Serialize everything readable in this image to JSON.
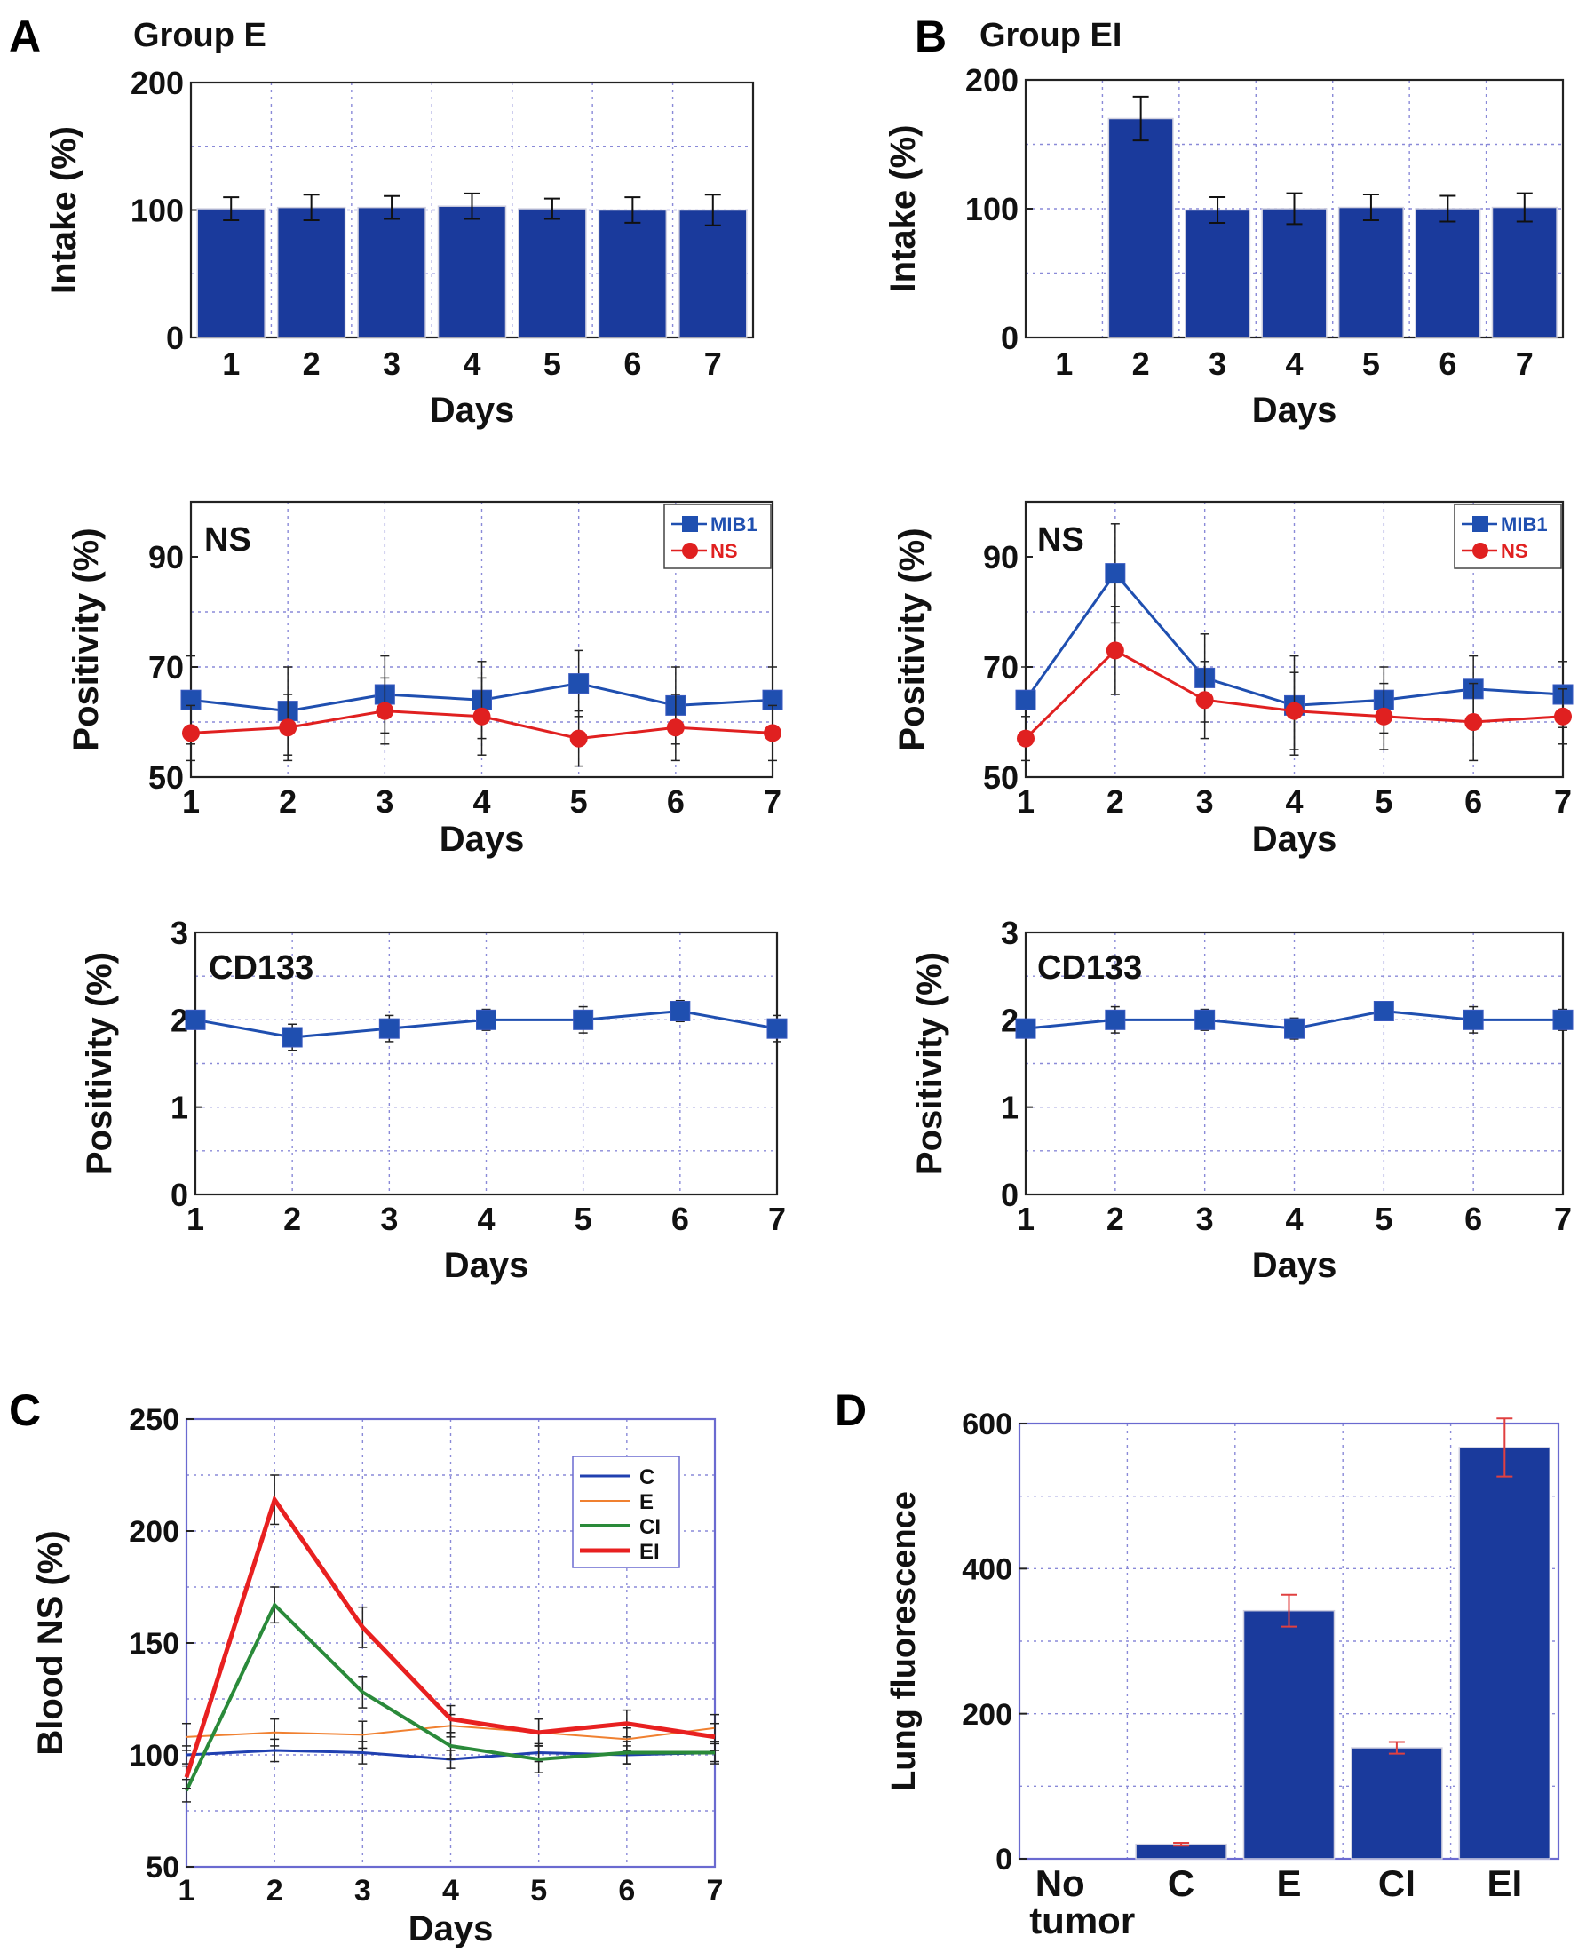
{
  "figure": {
    "panel_labels": [
      "A",
      "B",
      "C",
      "D"
    ]
  },
  "chart_data": [
    {
      "id": "A-intake",
      "panel": "A",
      "type": "bar",
      "title": "Group E",
      "xlabel": "Days",
      "ylabel": "Intake (%)",
      "categories": [
        "1",
        "2",
        "3",
        "4",
        "5",
        "6",
        "7"
      ],
      "values": [
        101,
        102,
        102,
        103,
        101,
        100,
        100
      ],
      "errors": [
        9,
        10,
        9,
        10,
        8,
        10,
        12
      ],
      "ylim": [
        0,
        200
      ],
      "yticks": [
        0,
        100,
        200
      ],
      "grid": true,
      "bar_color": "#1a3a9c"
    },
    {
      "id": "B-intake",
      "panel": "B",
      "type": "bar",
      "title": "Group EI",
      "xlabel": "Days",
      "ylabel": "Intake (%)",
      "categories": [
        "1",
        "2",
        "3",
        "4",
        "5",
        "6",
        "7"
      ],
      "values": [
        0,
        170,
        99,
        100,
        101,
        100,
        101
      ],
      "errors": [
        0,
        17,
        10,
        12,
        10,
        10,
        11
      ],
      "ylim": [
        0,
        200
      ],
      "yticks": [
        0,
        100,
        200
      ],
      "grid": true,
      "bar_color": "#1a3a9c"
    },
    {
      "id": "A-ns",
      "panel": "A",
      "type": "line",
      "annotation": "NS",
      "xlabel": "Days",
      "ylabel": "Positivity (%)",
      "x": [
        1,
        2,
        3,
        4,
        5,
        6,
        7
      ],
      "ylim": [
        50,
        100
      ],
      "yticks": [
        50,
        70,
        90
      ],
      "grid": true,
      "legend": "top-right",
      "series": [
        {
          "name": "MIB1",
          "marker": "square",
          "color": "#1f4fb0",
          "values": [
            64,
            62,
            65,
            64,
            67,
            63,
            64
          ],
          "errors": [
            8,
            8,
            7,
            7,
            6,
            7,
            6
          ]
        },
        {
          "name": "NS",
          "marker": "circle",
          "color": "#e02020",
          "values": [
            58,
            59,
            62,
            61,
            57,
            59,
            58
          ],
          "errors": [
            5,
            6,
            6,
            7,
            5,
            6,
            5
          ]
        }
      ]
    },
    {
      "id": "B-ns",
      "panel": "B",
      "type": "line",
      "annotation": "NS",
      "xlabel": "Days",
      "ylabel": "Positivity (%)",
      "x": [
        1,
        2,
        3,
        4,
        5,
        6,
        7
      ],
      "ylim": [
        50,
        100
      ],
      "yticks": [
        50,
        70,
        90
      ],
      "grid": true,
      "legend": "top-right",
      "series": [
        {
          "name": "MIB1",
          "marker": "square",
          "color": "#1f4fb0",
          "values": [
            64,
            87,
            68,
            63,
            64,
            66,
            65
          ],
          "errors": [
            6,
            9,
            8,
            9,
            6,
            6,
            6
          ]
        },
        {
          "name": "NS",
          "marker": "circle",
          "color": "#e02020",
          "values": [
            57,
            73,
            64,
            62,
            61,
            60,
            61
          ],
          "errors": [
            4,
            8,
            7,
            7,
            6,
            7,
            5
          ]
        }
      ]
    },
    {
      "id": "A-cd133",
      "panel": "A",
      "type": "line",
      "annotation": "CD133",
      "xlabel": "Days",
      "ylabel": "Positivity (%)",
      "x": [
        1,
        2,
        3,
        4,
        5,
        6,
        7
      ],
      "ylim": [
        0,
        3
      ],
      "yticks": [
        0,
        1,
        2,
        3
      ],
      "grid": true,
      "series": [
        {
          "name": "CD133",
          "marker": "square",
          "color": "#1f4fb0",
          "values": [
            2.0,
            1.8,
            1.9,
            2.0,
            2.0,
            2.1,
            1.9
          ],
          "errors": [
            0.1,
            0.15,
            0.15,
            0.12,
            0.15,
            0.12,
            0.15
          ]
        }
      ]
    },
    {
      "id": "B-cd133",
      "panel": "B",
      "type": "line",
      "annotation": "CD133",
      "xlabel": "Days",
      "ylabel": "Positivity (%)",
      "x": [
        1,
        2,
        3,
        4,
        5,
        6,
        7
      ],
      "ylim": [
        0,
        3
      ],
      "yticks": [
        0,
        1,
        2,
        3
      ],
      "grid": true,
      "series": [
        {
          "name": "CD133",
          "marker": "square",
          "color": "#1f4fb0",
          "values": [
            1.9,
            2.0,
            2.0,
            1.9,
            2.1,
            2.0,
            2.0
          ],
          "errors": [
            0.1,
            0.15,
            0.12,
            0.12,
            0.1,
            0.15,
            0.12
          ]
        }
      ]
    },
    {
      "id": "C-blood",
      "panel": "C",
      "type": "line",
      "xlabel": "Days",
      "ylabel": "Blood NS (%)",
      "x": [
        1,
        2,
        3,
        4,
        5,
        6,
        7
      ],
      "ylim": [
        50,
        250
      ],
      "yticks": [
        50,
        100,
        150,
        200,
        250
      ],
      "grid": true,
      "legend": "top-right",
      "series": [
        {
          "name": "C",
          "color": "#2040b0",
          "width": 3,
          "values": [
            100,
            102,
            101,
            98,
            101,
            100,
            101
          ],
          "errors": [
            4,
            5,
            5,
            4,
            4,
            4,
            4
          ]
        },
        {
          "name": "E",
          "color": "#f08030",
          "width": 2,
          "values": [
            108,
            110,
            109,
            113,
            110,
            107,
            112
          ],
          "errors": [
            6,
            6,
            6,
            5,
            6,
            5,
            6
          ]
        },
        {
          "name": "CI",
          "color": "#2a8a3a",
          "width": 4,
          "values": [
            84,
            167,
            128,
            104,
            98,
            101,
            101
          ],
          "errors": [
            5,
            8,
            7,
            6,
            6,
            5,
            5
          ]
        },
        {
          "name": "EI",
          "color": "#e82020",
          "width": 5,
          "values": [
            90,
            214,
            157,
            116,
            110,
            114,
            108
          ],
          "errors": [
            5,
            11,
            9,
            6,
            6,
            6,
            6
          ]
        }
      ]
    },
    {
      "id": "D-lung",
      "panel": "D",
      "type": "bar",
      "xlabel": "",
      "ylabel": "Lung fluorescence",
      "categories": [
        "No tumor",
        "C",
        "E",
        "CI",
        "EI"
      ],
      "category_lines": [
        [
          "No",
          "tumor"
        ],
        [
          "C"
        ],
        [
          "E"
        ],
        [
          "CI"
        ],
        [
          "EI"
        ]
      ],
      "values": [
        0,
        20,
        342,
        153,
        567
      ],
      "errors": [
        0,
        2,
        22,
        8,
        40
      ],
      "error_color": "#e04040",
      "ylim": [
        0,
        600
      ],
      "yticks": [
        0,
        200,
        400,
        600
      ],
      "grid": true,
      "bar_color": "#1a3a9c"
    }
  ]
}
